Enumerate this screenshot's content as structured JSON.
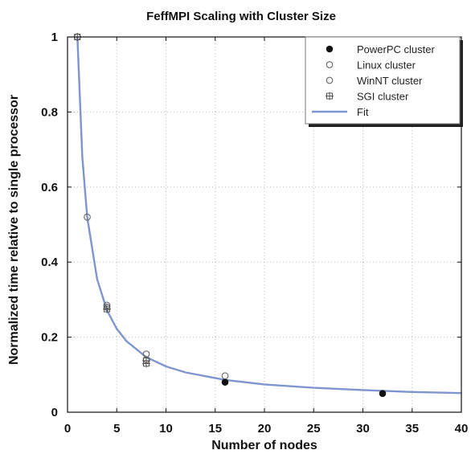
{
  "chart_data": {
    "type": "scatter",
    "title": "FeffMPI Scaling with Cluster Size",
    "xlabel": "Number of nodes",
    "ylabel": "Normalized time relative to single processor",
    "xlim": [
      0,
      40
    ],
    "ylim": [
      0,
      1
    ],
    "xticks": [
      "0",
      "5",
      "10",
      "15",
      "20",
      "25",
      "30",
      "35",
      "40"
    ],
    "yticks": [
      "0",
      "0.2",
      "0.4",
      "0.6",
      "0.8",
      "1"
    ],
    "grid": true,
    "legend_position": "top-right",
    "series": [
      {
        "name": "PowerPC cluster",
        "marker": "filled-circle",
        "x": [
          16,
          32
        ],
        "y": [
          0.08,
          0.05
        ]
      },
      {
        "name": "Linux cluster",
        "marker": "open-circle",
        "x": [
          1,
          2,
          4,
          8,
          16
        ],
        "y": [
          1.0,
          0.52,
          0.28,
          0.155,
          0.097
        ]
      },
      {
        "name": "WinNT cluster",
        "marker": "open-circle",
        "x": [
          1,
          4,
          8
        ],
        "y": [
          1.0,
          0.285,
          0.14
        ]
      },
      {
        "name": "SGI cluster",
        "marker": "square-plus",
        "x": [
          1,
          4,
          8,
          8
        ],
        "y": [
          1.0,
          0.275,
          0.13,
          0.137
        ]
      },
      {
        "name": "Fit",
        "type": "line",
        "color": "#7f95cf",
        "x": [
          1,
          1.5,
          2,
          3,
          4,
          5,
          6,
          8,
          10,
          12,
          16,
          20,
          25,
          30,
          35,
          40
        ],
        "y": [
          1.0,
          0.68,
          0.52,
          0.355,
          0.272,
          0.222,
          0.189,
          0.147,
          0.122,
          0.106,
          0.086,
          0.074,
          0.065,
          0.059,
          0.054,
          0.051
        ]
      }
    ]
  }
}
